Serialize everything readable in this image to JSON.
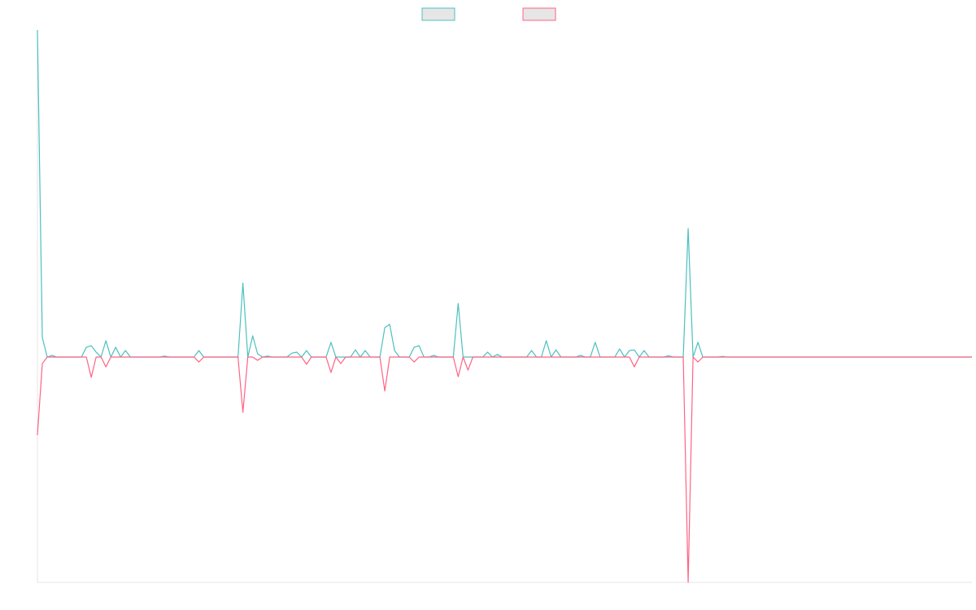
{
  "chart_data": {
    "type": "line",
    "legend": "top",
    "grid": false,
    "ylim": [
      -0.689,
      1
    ],
    "series": [
      {
        "color": "#4bc0c0",
        "values": [
          1,
          0.06,
          0,
          0.005,
          0,
          0,
          0,
          0,
          0,
          0,
          0.03,
          0.035,
          0.015,
          0,
          0.05,
          0,
          0.03,
          0,
          0.02,
          0,
          0,
          0,
          0,
          0,
          0,
          0,
          0.003,
          0,
          0,
          0,
          0,
          0,
          0,
          0.02,
          0,
          0,
          0,
          0,
          0,
          0,
          0,
          0,
          0.226,
          0,
          0.065,
          0.01,
          0,
          0.003,
          0,
          0,
          0,
          0,
          0.012,
          0.015,
          0,
          0.02,
          0,
          0,
          0,
          0,
          0.045,
          0,
          0,
          0,
          0,
          0.022,
          0,
          0.02,
          0,
          0,
          0,
          0.09,
          0.1,
          0.02,
          0,
          0,
          0,
          0.03,
          0.035,
          0,
          0,
          0.005,
          0,
          0,
          0,
          0,
          0.164,
          0,
          0,
          0,
          0,
          0,
          0.015,
          0,
          0.008,
          0,
          0,
          0,
          0,
          0,
          0,
          0.02,
          0,
          0,
          0.05,
          0,
          0.022,
          0,
          0,
          0,
          0,
          0.005,
          0,
          0,
          0.045,
          0,
          0,
          0,
          0,
          0.025,
          0,
          0.02,
          0.022,
          0,
          0.02,
          0,
          0,
          0,
          0,
          0.004,
          0,
          0,
          0,
          0.393,
          0,
          0.045,
          0,
          0,
          0,
          0,
          0.002,
          0,
          0,
          0,
          0,
          0,
          0,
          0,
          0,
          0,
          0,
          0,
          0,
          0,
          0,
          0,
          0,
          0,
          0,
          0,
          0,
          0,
          0,
          0,
          0,
          0,
          0,
          0,
          0,
          0,
          0,
          0,
          0,
          0,
          0,
          0,
          0,
          0,
          0,
          0,
          0,
          0,
          0,
          0,
          0,
          0,
          0,
          0,
          0,
          0,
          0,
          0
        ]
      },
      {
        "color": "#ff6384",
        "values": [
          -0.239,
          -0.02,
          0,
          0,
          0,
          0,
          0,
          0,
          0,
          0,
          0,
          -0.062,
          0,
          0,
          -0.03,
          0,
          0,
          0,
          0,
          0,
          0,
          0,
          0,
          0,
          0,
          0,
          0,
          0,
          0,
          0,
          0,
          0,
          0,
          -0.015,
          0,
          0,
          0,
          0,
          0,
          0,
          0,
          0,
          -0.169,
          0,
          0,
          -0.01,
          0,
          0,
          0,
          0,
          0,
          0,
          0,
          0,
          0,
          -0.022,
          0,
          0,
          0,
          0,
          -0.047,
          0,
          -0.02,
          0,
          0,
          0,
          0,
          0,
          0,
          0,
          0,
          -0.104,
          0,
          0,
          0,
          0,
          0,
          -0.015,
          0,
          0,
          0,
          0,
          0,
          0,
          0,
          0,
          -0.06,
          0,
          -0.04,
          0,
          0,
          0,
          0,
          0,
          0,
          0,
          0,
          0,
          0,
          0,
          0,
          0,
          0,
          0,
          0,
          0,
          0,
          0,
          0,
          0,
          0,
          0,
          0,
          0,
          0,
          0,
          0,
          0,
          0,
          0,
          0,
          0,
          -0.03,
          0,
          0,
          0,
          0,
          0,
          0,
          0,
          0,
          0,
          0,
          -0.689,
          0,
          -0.015,
          0,
          0,
          0,
          0,
          0,
          0,
          0,
          0,
          0,
          0,
          0,
          0,
          0,
          0,
          0,
          0,
          0,
          0,
          0,
          0,
          0,
          0,
          0,
          0,
          0,
          0,
          0,
          0,
          0,
          0,
          0,
          0,
          0,
          0,
          0,
          0,
          0,
          0,
          0,
          0,
          0,
          0,
          0,
          0,
          0,
          0,
          0,
          0,
          0,
          0,
          0,
          0,
          0,
          0,
          0,
          0
        ]
      }
    ]
  }
}
